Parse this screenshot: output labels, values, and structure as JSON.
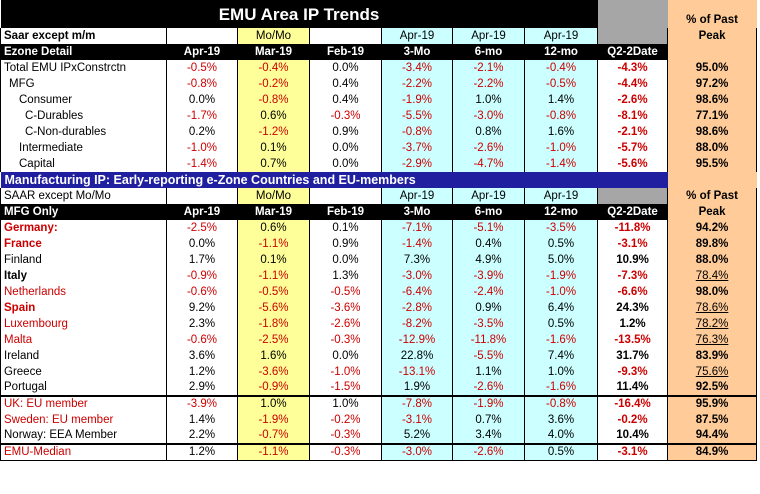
{
  "title": "EMU Area IP Trends",
  "peak_label_1": "% of Past",
  "peak_label_2": "Peak",
  "top": {
    "unit": "Saar except m/m",
    "momo": "Mo/Mo",
    "apr1": "Apr-19",
    "apr2": "Apr-19",
    "apr3": "Apr-19",
    "cols": [
      "Ezone Detail",
      "Apr-19",
      "Mar-19",
      "Feb-19",
      "3-Mo",
      "6-mo",
      "12-mo",
      "Q2-2Date"
    ],
    "rows": [
      [
        "Total EMU IPxConstrctn",
        "-0.5%",
        "-0.4%",
        "0.0%",
        "-3.4%",
        "-2.1%",
        "-0.4%",
        "-4.3%",
        "95.0%"
      ],
      [
        "MFG",
        "-0.8%",
        "-0.2%",
        "0.4%",
        "-2.2%",
        "-2.2%",
        "-0.5%",
        "-4.4%",
        "97.2%"
      ],
      [
        "Consumer",
        "0.0%",
        "-0.8%",
        "0.4%",
        "-1.9%",
        "1.0%",
        "1.4%",
        "-2.6%",
        "98.6%"
      ],
      [
        "C-Durables",
        "-1.7%",
        "0.6%",
        "-0.3%",
        "-5.5%",
        "-3.0%",
        "-0.8%",
        "-8.1%",
        "77.1%"
      ],
      [
        "C-Non-durables",
        "0.2%",
        "-1.2%",
        "0.9%",
        "-0.8%",
        "0.8%",
        "1.6%",
        "-2.1%",
        "98.6%"
      ],
      [
        "Intermediate",
        "-1.0%",
        "0.1%",
        "0.0%",
        "-3.7%",
        "-2.6%",
        "-1.0%",
        "-5.7%",
        "88.0%"
      ],
      [
        "Capital",
        "-1.4%",
        "0.7%",
        "0.0%",
        "-2.9%",
        "-4.7%",
        "-1.4%",
        "-5.6%",
        "95.5%"
      ]
    ]
  },
  "band": "Manufacturing IP: Early-reporting e-Zone Countries and EU-members",
  "bottom": {
    "unit": "SAAR except Mo/Mo",
    "momo": "Mo/Mo",
    "apr1": "Apr-19",
    "apr2": "Apr-19",
    "apr3": "Apr-19",
    "cols": [
      "MFG Only",
      "Apr-19",
      "Mar-19",
      "Feb-19",
      "3-Mo",
      "6-mo",
      "12-mo",
      "Q2-2Date"
    ],
    "rows": [
      [
        "Germany:",
        "-2.5%",
        "0.6%",
        "0.1%",
        "-7.1%",
        "-5.1%",
        "-3.5%",
        "-11.8%",
        "94.2%"
      ],
      [
        "France",
        "0.0%",
        "-1.1%",
        "0.9%",
        "-1.4%",
        "0.4%",
        "0.5%",
        "-3.1%",
        "89.8%"
      ],
      [
        "Finland",
        "1.7%",
        "0.1%",
        "0.0%",
        "7.3%",
        "4.9%",
        "5.0%",
        "10.9%",
        "88.0%"
      ],
      [
        "Italy",
        "-0.9%",
        "-1.1%",
        "1.3%",
        "-3.0%",
        "-3.9%",
        "-1.9%",
        "-7.3%",
        "78.4%"
      ],
      [
        "Netherlands",
        "-0.6%",
        "-0.5%",
        "-0.5%",
        "-6.4%",
        "-2.4%",
        "-1.0%",
        "-6.6%",
        "98.0%"
      ],
      [
        "Spain",
        "9.2%",
        "-5.6%",
        "-3.6%",
        "-2.8%",
        "0.9%",
        "6.4%",
        "24.3%",
        "78.6%"
      ],
      [
        "Luxembourg",
        "2.3%",
        "-1.8%",
        "-2.6%",
        "-8.2%",
        "-3.5%",
        "0.5%",
        "1.2%",
        "78.2%"
      ],
      [
        "Malta",
        "-0.6%",
        "-2.5%",
        "-0.3%",
        "-12.9%",
        "-11.8%",
        "-1.6%",
        "-13.5%",
        "76.3%"
      ],
      [
        "Ireland",
        "3.6%",
        "1.6%",
        "0.0%",
        "22.8%",
        "-5.5%",
        "7.4%",
        "31.7%",
        "83.9%"
      ],
      [
        "Greece",
        "1.2%",
        "-3.6%",
        "-1.0%",
        "-13.1%",
        "1.1%",
        "1.0%",
        "-9.3%",
        "75.6%"
      ],
      [
        "Portugal",
        "2.9%",
        "-0.9%",
        "-1.5%",
        "1.9%",
        "-2.6%",
        "-1.6%",
        "11.4%",
        "92.5%"
      ],
      [
        "UK: EU member",
        "-3.9%",
        "1.0%",
        "1.0%",
        "-7.8%",
        "-1.9%",
        "-0.8%",
        "-16.4%",
        "95.9%"
      ],
      [
        "Sweden: EU member",
        "1.4%",
        "-1.9%",
        "-0.2%",
        "-3.1%",
        "0.7%",
        "3.6%",
        "-0.2%",
        "87.5%"
      ],
      [
        "Norway: EEA Member",
        "2.2%",
        "-0.7%",
        "-0.3%",
        "5.2%",
        "3.4%",
        "4.0%",
        "10.4%",
        "94.4%"
      ],
      [
        "EMU-Median",
        "1.2%",
        "-1.1%",
        "-0.3%",
        "-3.0%",
        "-2.6%",
        "0.5%",
        "-3.1%",
        "84.9%"
      ]
    ]
  }
}
